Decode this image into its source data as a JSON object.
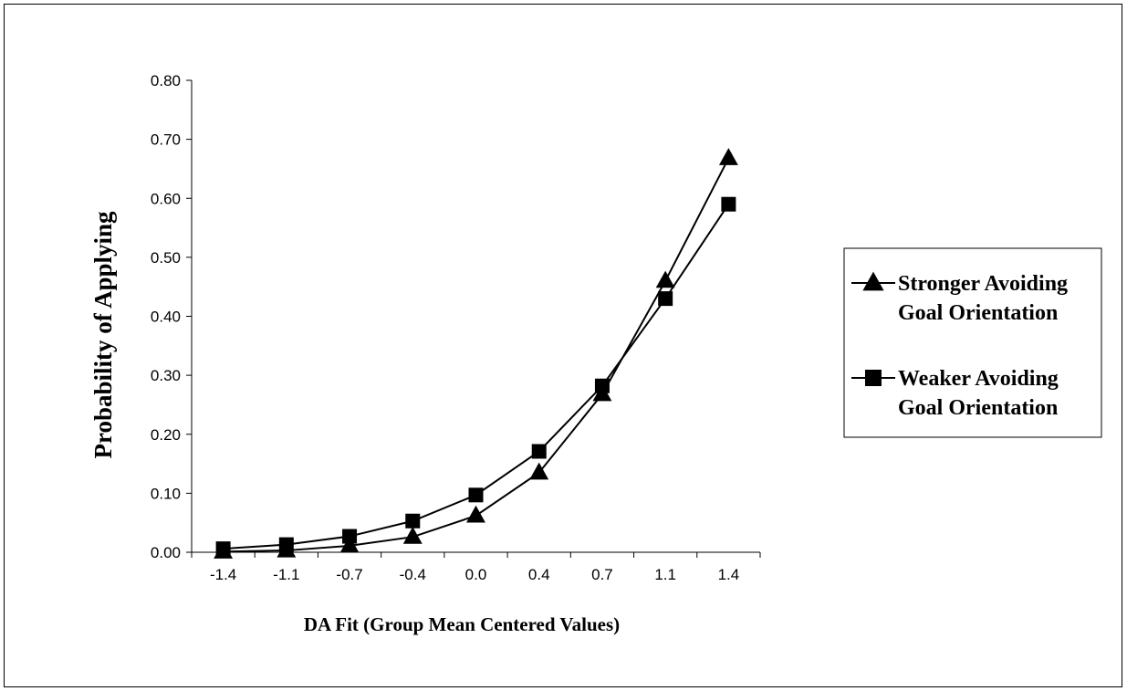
{
  "chart_data": {
    "type": "line",
    "xlabel": "DA Fit (Group Mean Centered Values)",
    "ylabel": "Probability of Applying",
    "categories": [
      "-1.4",
      "-1.1",
      "-0.7",
      "-0.4",
      "0.0",
      "0.4",
      "0.7",
      "1.1",
      "1.4"
    ],
    "ylim": [
      0,
      0.8
    ],
    "yticks": [
      "0.00",
      "0.10",
      "0.20",
      "0.30",
      "0.40",
      "0.50",
      "0.60",
      "0.70",
      "0.80"
    ],
    "grid": false,
    "legend_position": "right",
    "series": [
      {
        "name_lines": [
          "Stronger Avoiding",
          "Goal Orientation"
        ],
        "marker": "triangle",
        "color": "#000000",
        "values": [
          0.001,
          0.003,
          0.011,
          0.026,
          0.062,
          0.135,
          0.268,
          0.46,
          0.668
        ]
      },
      {
        "name_lines": [
          "Weaker Avoiding",
          "Goal Orientation"
        ],
        "marker": "square",
        "color": "#000000",
        "values": [
          0.006,
          0.013,
          0.027,
          0.053,
          0.097,
          0.171,
          0.282,
          0.43,
          0.59
        ]
      }
    ]
  }
}
